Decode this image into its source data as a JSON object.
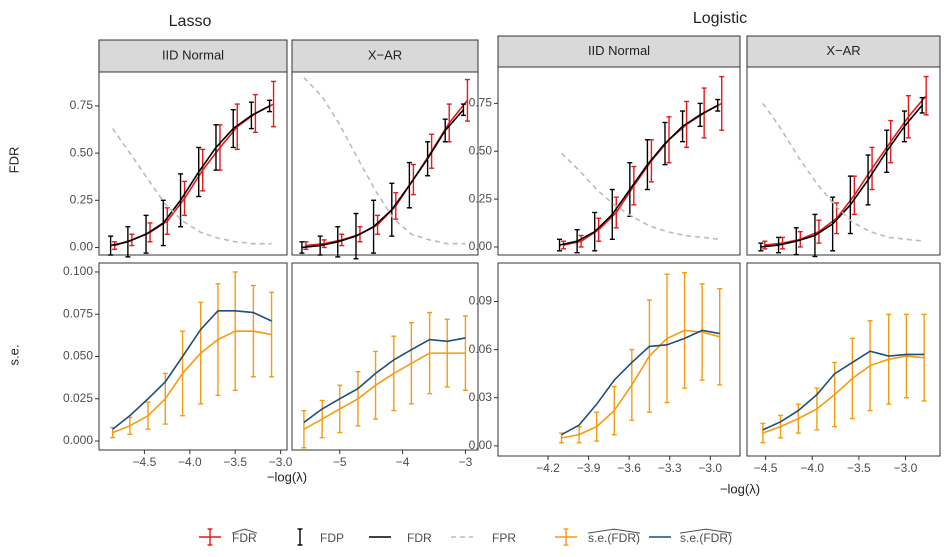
{
  "chart_data": {
    "type": "facet-line",
    "ylabels": [
      "FDR",
      "s.e."
    ],
    "series": [
      {
        "name": "FDR",
        "hat": true,
        "color": "#e41a1c",
        "row": 0,
        "style": "errorbar-line"
      },
      {
        "name": "FDP",
        "color": "#000000",
        "row": 0,
        "style": "errorbar"
      },
      {
        "name": "FDR",
        "color": "#000000",
        "row": 0,
        "style": "line"
      },
      {
        "name": "FPR",
        "color": "#bbbbbb",
        "row": 0,
        "style": "dashed"
      },
      {
        "name": "s.e.(FDR)",
        "hat": true,
        "color": "#f39c12",
        "row": 1,
        "style": "errorbar-line"
      },
      {
        "name": "s.e.(FDR)",
        "hat": true,
        "color": "#1f4e79",
        "row": 1,
        "style": "line"
      }
    ],
    "groups": [
      {
        "title": "Lasso",
        "xlabel": "−log(λ)",
        "rows": [
          {
            "ylim": [
              -0.04,
              0.93
            ],
            "yticks": [
              {
                "value": 0,
                "label": "0.00"
              },
              {
                "value": 0.25,
                "label": "0.25"
              },
              {
                "value": 0.5,
                "label": "0.50"
              },
              {
                "value": 0.75,
                "label": "0.75"
              }
            ]
          },
          {
            "ylim": [
              -0.0053,
              0.1053
            ],
            "yticks": [
              {
                "value": 0,
                "label": "0.000"
              },
              {
                "value": 0.025,
                "label": "0.025"
              },
              {
                "value": 0.05,
                "label": "0.050"
              },
              {
                "value": 0.075,
                "label": "0.075"
              },
              {
                "value": 0.1,
                "label": "0.100"
              }
            ]
          }
        ],
        "facets": [
          {
            "strip": "IID Normal",
            "xlim": [
              -5.0,
              -2.93
            ],
            "xticks": [
              {
                "value": -4.5,
                "label": "−4.5"
              },
              {
                "value": -4.0,
                "label": "−4.0"
              },
              {
                "value": -3.5,
                "label": "−3.5"
              },
              {
                "value": -3.0,
                "label": "−3.0"
              }
            ],
            "x": [
              -4.85,
              -4.66,
              -4.46,
              -4.27,
              -4.08,
              -3.88,
              -3.69,
              -3.5,
              -3.3,
              -3.1
            ],
            "data": [
              {
                "values": [
                  0.01,
                  0.04,
                  0.08,
                  0.14,
                  0.26,
                  0.41,
                  0.53,
                  0.64,
                  0.71,
                  0.76
                ],
                "errors": [
                  0.02,
                  0.03,
                  0.05,
                  0.07,
                  0.09,
                  0.11,
                  0.12,
                  0.12,
                  0.1,
                  0.12
                ]
              },
              {
                "values": [
                  0.01,
                  0.03,
                  0.07,
                  0.13,
                  0.25,
                  0.4,
                  0.53,
                  0.63,
                  0.7,
                  0.75
                ],
                "errors": [
                  0.05,
                  0.08,
                  0.1,
                  0.12,
                  0.14,
                  0.13,
                  0.12,
                  0.1,
                  0.07,
                  0.03
                ]
              },
              {
                "values": [
                  0.01,
                  0.03,
                  0.07,
                  0.13,
                  0.25,
                  0.4,
                  0.53,
                  0.63,
                  0.7,
                  0.75
                ]
              },
              {
                "values": [
                  0.63,
                  0.5,
                  0.36,
                  0.23,
                  0.14,
                  0.08,
                  0.05,
                  0.03,
                  0.02,
                  0.02
                ]
              },
              {
                "values": [
                  0.005,
                  0.009,
                  0.015,
                  0.025,
                  0.04,
                  0.052,
                  0.06,
                  0.065,
                  0.065,
                  0.063
                ],
                "errors": [
                  0.003,
                  0.005,
                  0.008,
                  0.015,
                  0.025,
                  0.03,
                  0.033,
                  0.035,
                  0.027,
                  0.025
                ]
              },
              {
                "values": [
                  0.007,
                  0.015,
                  0.025,
                  0.035,
                  0.05,
                  0.066,
                  0.077,
                  0.077,
                  0.076,
                  0.071
                ]
              }
            ]
          },
          {
            "strip": "X−AR",
            "xlim": [
              -5.76,
              -2.8
            ],
            "xticks": [
              {
                "value": -5,
                "label": "−5"
              },
              {
                "value": -4,
                "label": "−4"
              },
              {
                "value": -3,
                "label": "−3"
              }
            ],
            "x": [
              -5.57,
              -5.28,
              -5.0,
              -4.71,
              -4.43,
              -4.14,
              -3.86,
              -3.57,
              -3.29,
              -3.0
            ],
            "data": [
              {
                "values": [
                  0.01,
                  0.02,
                  0.04,
                  0.07,
                  0.12,
                  0.22,
                  0.36,
                  0.51,
                  0.66,
                  0.78
                ],
                "errors": [
                  0.02,
                  0.02,
                  0.03,
                  0.04,
                  0.05,
                  0.07,
                  0.08,
                  0.09,
                  0.1,
                  0.11
                ]
              },
              {
                "values": [
                  0.0,
                  0.01,
                  0.03,
                  0.06,
                  0.11,
                  0.2,
                  0.33,
                  0.47,
                  0.62,
                  0.73
                ],
                "errors": [
                  0.03,
                  0.05,
                  0.08,
                  0.12,
                  0.14,
                  0.14,
                  0.12,
                  0.09,
                  0.06,
                  0.03
                ]
              },
              {
                "values": [
                  0.0,
                  0.01,
                  0.03,
                  0.06,
                  0.11,
                  0.2,
                  0.33,
                  0.47,
                  0.62,
                  0.73
                ]
              },
              {
                "values": [
                  0.9,
                  0.8,
                  0.65,
                  0.47,
                  0.3,
                  0.15,
                  0.07,
                  0.04,
                  0.02,
                  0.02
                ]
              },
              {
                "values": [
                  0.007,
                  0.013,
                  0.019,
                  0.025,
                  0.033,
                  0.04,
                  0.046,
                  0.052,
                  0.052,
                  0.052
                ],
                "errors": [
                  0.011,
                  0.011,
                  0.014,
                  0.016,
                  0.02,
                  0.022,
                  0.024,
                  0.024,
                  0.02,
                  0.022
                ]
              },
              {
                "values": [
                  0.011,
                  0.019,
                  0.025,
                  0.031,
                  0.04,
                  0.048,
                  0.054,
                  0.06,
                  0.059,
                  0.061
                ]
              }
            ]
          }
        ]
      },
      {
        "title": "Logistic",
        "xlabel": "−log(λ)",
        "rows": [
          {
            "ylim": [
              -0.042,
              0.94
            ],
            "yticks": [
              {
                "value": 0,
                "label": "0.00"
              },
              {
                "value": 0.25,
                "label": "0.25"
              },
              {
                "value": 0.5,
                "label": "0.50"
              },
              {
                "value": 0.75,
                "label": "0.75"
              }
            ]
          },
          {
            "ylim": [
              -0.0063,
              0.114
            ],
            "yticks": [
              {
                "value": 0,
                "label": "0.00"
              },
              {
                "value": 0.03,
                "label": "0.03"
              },
              {
                "value": 0.06,
                "label": "0.06"
              },
              {
                "value": 0.09,
                "label": "0.09"
              }
            ]
          }
        ],
        "facets": [
          {
            "strip": "IID Normal",
            "xlim": [
              -4.57,
              -2.78
            ],
            "xticks": [
              {
                "value": -4.2,
                "label": "−4.2"
              },
              {
                "value": -3.9,
                "label": "−3.9"
              },
              {
                "value": -3.6,
                "label": "−3.6"
              },
              {
                "value": -3.3,
                "label": "−3.3"
              },
              {
                "value": -3.0,
                "label": "−3.0"
              }
            ],
            "x": [
              -4.1,
              -3.97,
              -3.84,
              -3.71,
              -3.58,
              -3.45,
              -3.32,
              -3.19,
              -3.06,
              -2.93
            ],
            "data": [
              {
                "values": [
                  0.01,
                  0.03,
                  0.09,
                  0.18,
                  0.32,
                  0.45,
                  0.56,
                  0.64,
                  0.7,
                  0.75
                ],
                "errors": [
                  0.02,
                  0.03,
                  0.06,
                  0.08,
                  0.1,
                  0.11,
                  0.12,
                  0.12,
                  0.13,
                  0.14
                ]
              },
              {
                "values": [
                  0.01,
                  0.03,
                  0.08,
                  0.17,
                  0.3,
                  0.43,
                  0.54,
                  0.63,
                  0.69,
                  0.74
                ],
                "errors": [
                  0.03,
                  0.06,
                  0.1,
                  0.13,
                  0.14,
                  0.13,
                  0.11,
                  0.08,
                  0.06,
                  0.03
                ]
              },
              {
                "values": [
                  0.01,
                  0.03,
                  0.08,
                  0.17,
                  0.3,
                  0.43,
                  0.54,
                  0.63,
                  0.69,
                  0.74
                ]
              },
              {
                "values": [
                  0.49,
                  0.4,
                  0.3,
                  0.22,
                  0.16,
                  0.11,
                  0.08,
                  0.06,
                  0.05,
                  0.04
                ]
              },
              {
                "values": [
                  0.005,
                  0.007,
                  0.012,
                  0.022,
                  0.038,
                  0.056,
                  0.067,
                  0.072,
                  0.071,
                  0.068
                ],
                "errors": [
                  0.003,
                  0.005,
                  0.009,
                  0.015,
                  0.022,
                  0.035,
                  0.04,
                  0.036,
                  0.03,
                  0.03
                ]
              },
              {
                "values": [
                  0.007,
                  0.013,
                  0.026,
                  0.041,
                  0.052,
                  0.062,
                  0.063,
                  0.067,
                  0.072,
                  0.07
                ]
              }
            ]
          },
          {
            "strip": "X−AR",
            "xlim": [
              -4.7,
              -2.63
            ],
            "xticks": [
              {
                "value": -4.5,
                "label": "−4.5"
              },
              {
                "value": -4.0,
                "label": "−4.0"
              },
              {
                "value": -3.5,
                "label": "−3.5"
              },
              {
                "value": -3.0,
                "label": "−3.0"
              }
            ],
            "x": [
              -4.53,
              -4.34,
              -4.15,
              -3.95,
              -3.76,
              -3.57,
              -3.38,
              -3.18,
              -2.99,
              -2.8
            ],
            "data": [
              {
                "values": [
                  0.01,
                  0.02,
                  0.04,
                  0.08,
                  0.15,
                  0.27,
                  0.41,
                  0.55,
                  0.68,
                  0.79
                ],
                "errors": [
                  0.02,
                  0.03,
                  0.04,
                  0.06,
                  0.08,
                  0.1,
                  0.11,
                  0.11,
                  0.11,
                  0.1
                ]
              },
              {
                "values": [
                  0.0,
                  0.01,
                  0.03,
                  0.06,
                  0.12,
                  0.22,
                  0.35,
                  0.5,
                  0.63,
                  0.74
                ],
                "errors": [
                  0.02,
                  0.04,
                  0.07,
                  0.11,
                  0.14,
                  0.15,
                  0.13,
                  0.11,
                  0.08,
                  0.04
                ]
              },
              {
                "values": [
                  0.0,
                  0.01,
                  0.03,
                  0.06,
                  0.12,
                  0.22,
                  0.35,
                  0.5,
                  0.63,
                  0.74
                ]
              },
              {
                "values": [
                  0.75,
                  0.62,
                  0.47,
                  0.33,
                  0.22,
                  0.13,
                  0.08,
                  0.05,
                  0.04,
                  0.03
                ]
              },
              {
                "values": [
                  0.008,
                  0.012,
                  0.017,
                  0.023,
                  0.032,
                  0.042,
                  0.05,
                  0.054,
                  0.056,
                  0.055
                ],
                "errors": [
                  0.006,
                  0.007,
                  0.009,
                  0.013,
                  0.02,
                  0.025,
                  0.028,
                  0.028,
                  0.026,
                  0.027
                ]
              },
              {
                "values": [
                  0.01,
                  0.015,
                  0.022,
                  0.032,
                  0.045,
                  0.052,
                  0.059,
                  0.056,
                  0.057,
                  0.057
                ]
              }
            ]
          }
        ]
      }
    ]
  }
}
